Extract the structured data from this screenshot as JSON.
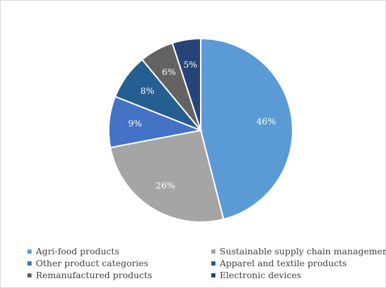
{
  "chart_data": {
    "type": "pie",
    "categories": [
      "Agri-food products",
      "Sustainable supply chain management",
      "Other product categories",
      "Apparel and textile products",
      "Remanufactured products",
      "Electronic devices"
    ],
    "values": [
      46,
      26,
      9,
      8,
      6,
      5
    ],
    "labels": [
      "46%",
      "26%",
      "9%",
      "8%",
      "6%",
      "5%"
    ],
    "slice_order": [
      "Agri-food products",
      "Sustainable supply chain management",
      "Other product categories",
      "Apparel and textile products",
      "Remanufactured products",
      "Electronic devices"
    ],
    "colors": [
      "#5b9bd5",
      "#a5a5a5",
      "#4472c4",
      "#255e91",
      "#636363",
      "#264478"
    ],
    "start": "12 o'clock",
    "direction": "clockwise",
    "legend_position": "bottom"
  },
  "legend": [
    {
      "label": "Agri-food products",
      "color": "#5b9bd5"
    },
    {
      "label": "Sustainable supply chain management",
      "color": "#a5a5a5"
    },
    {
      "label": "Other product categories",
      "color": "#4472c4"
    },
    {
      "label": "Apparel and textile products",
      "color": "#255e91"
    },
    {
      "label": "Remanufactured products",
      "color": "#636363"
    },
    {
      "label": "Electronic devices",
      "color": "#264478"
    }
  ]
}
